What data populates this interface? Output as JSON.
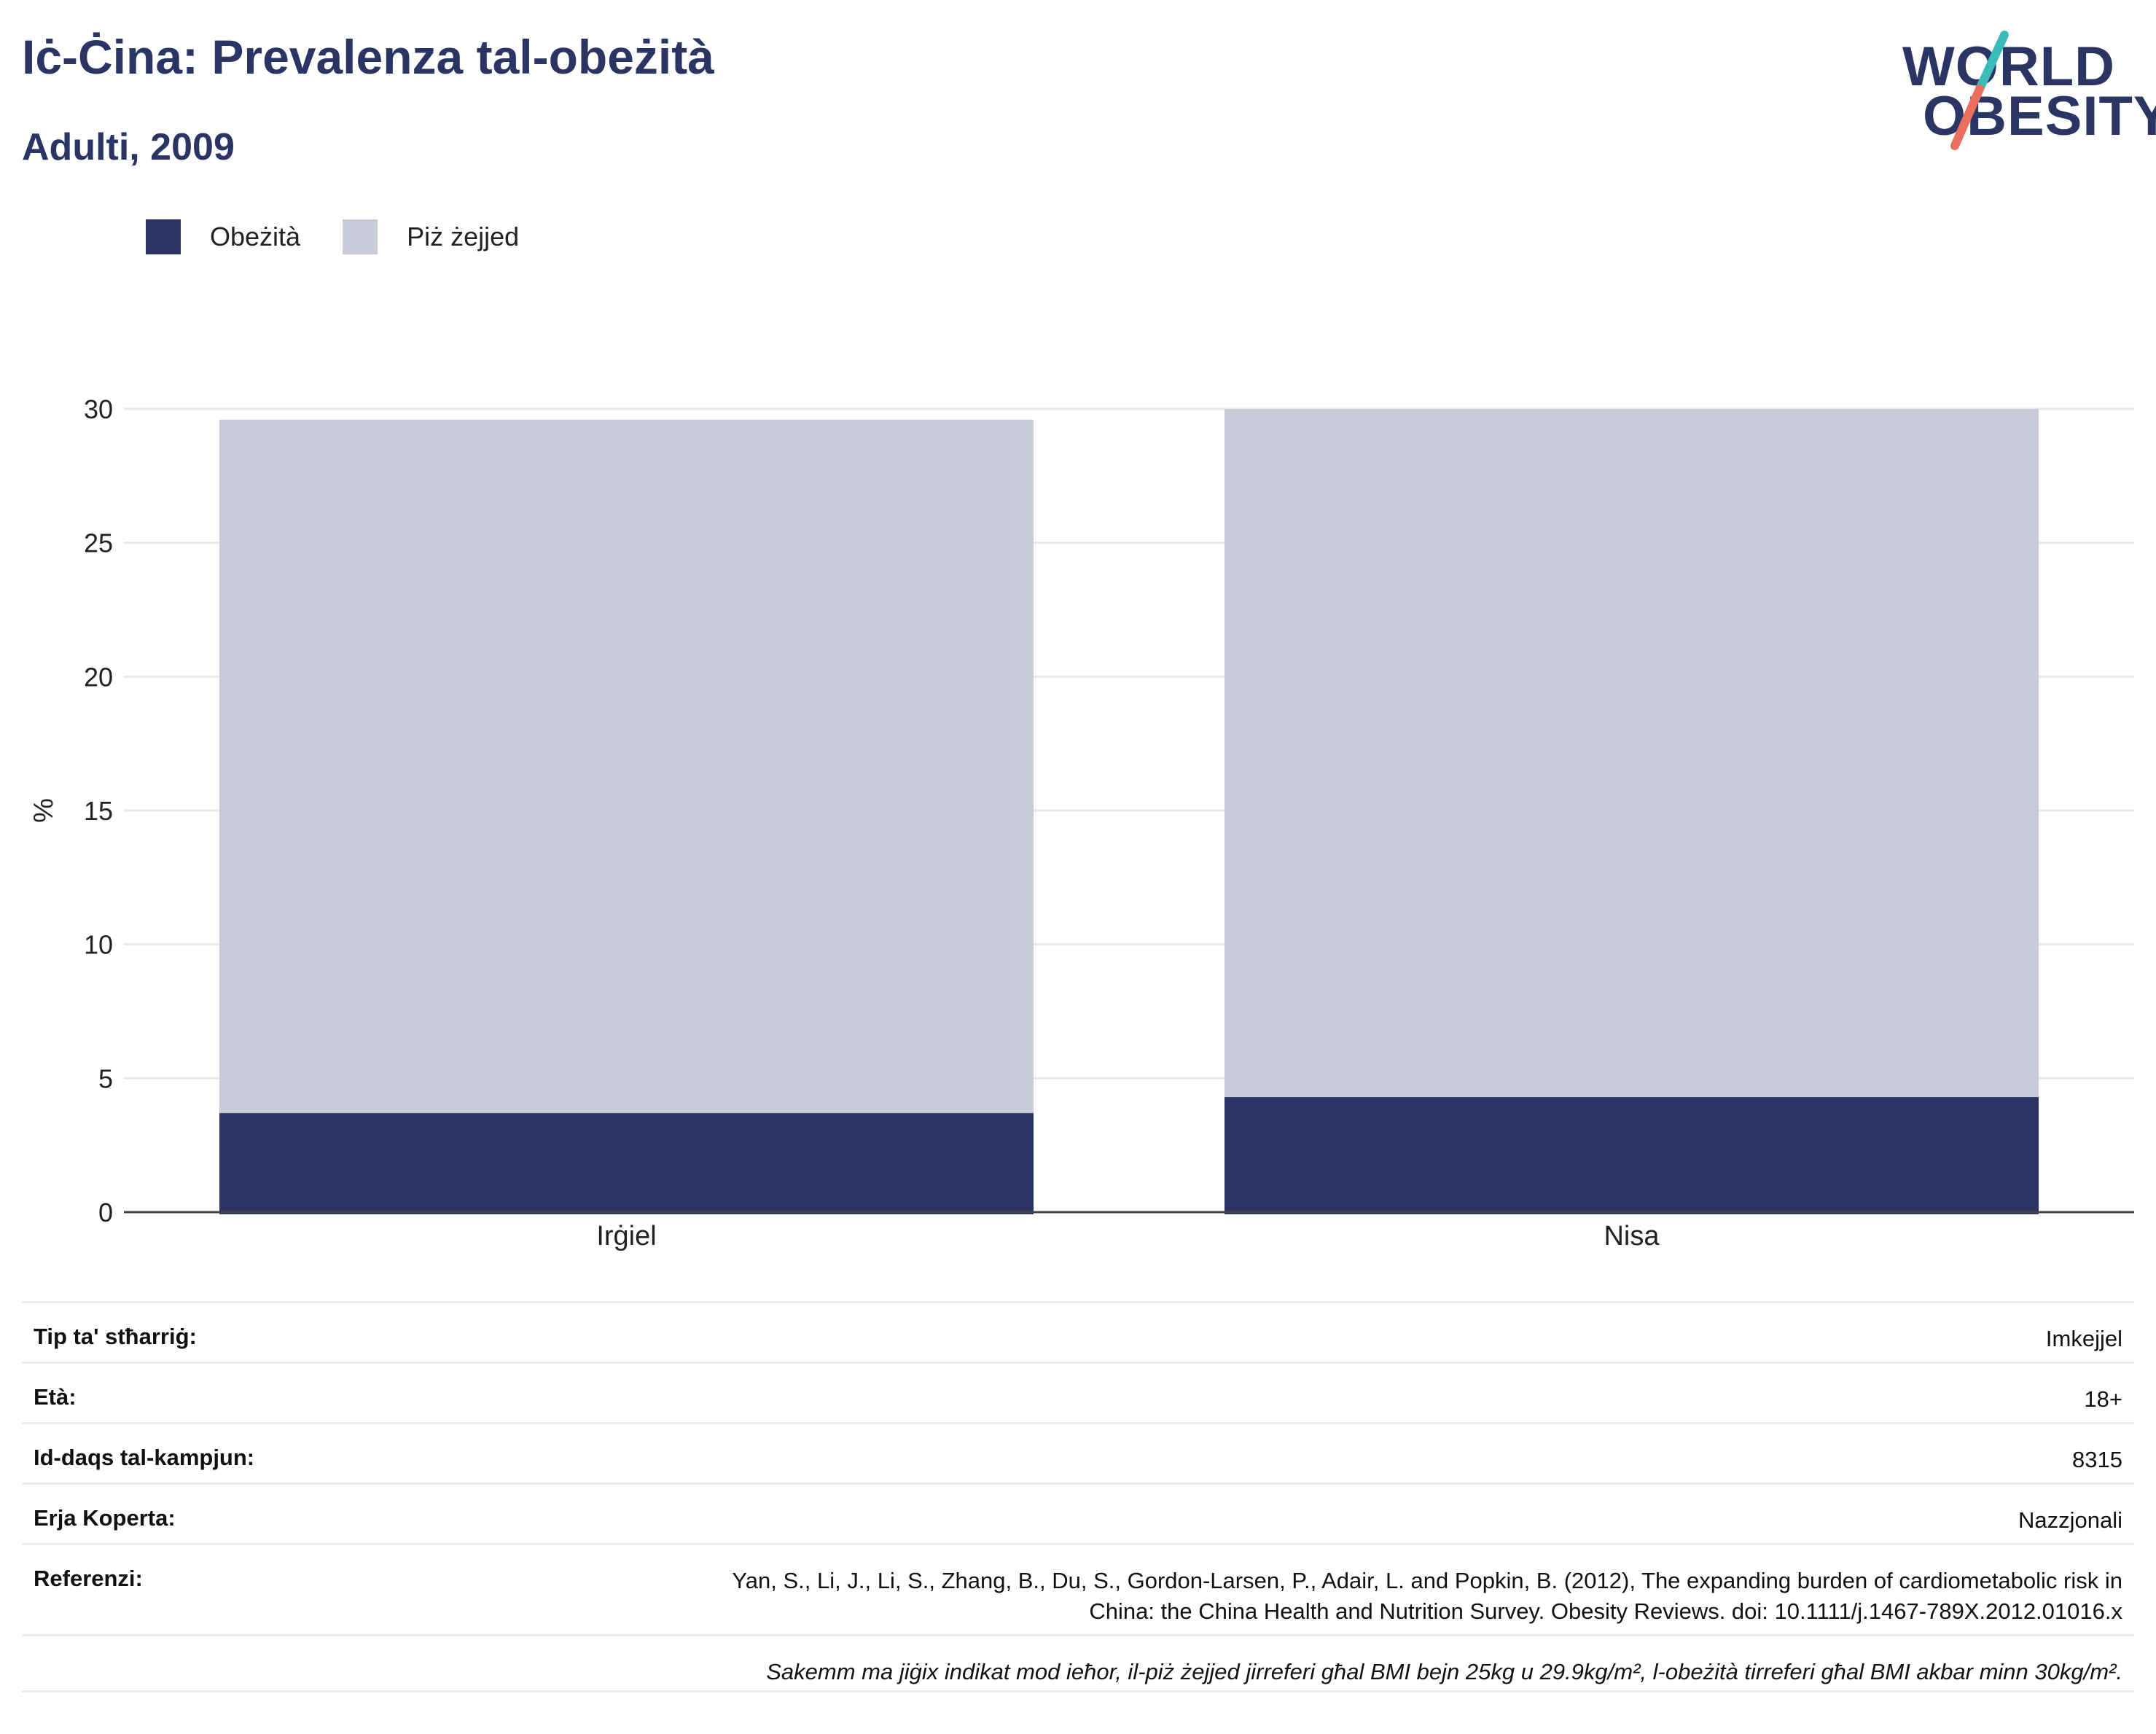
{
  "header": {
    "title": "Iċ-Ċina: Prevalenza tal-obeżità",
    "subtitle": "Adulti, 2009"
  },
  "logo": {
    "line1": "WORLD",
    "line2": "OBESITY",
    "colors": {
      "text": "#2a3563",
      "slash_top": "#3bbcb8",
      "slash_bottom": "#e8705c"
    }
  },
  "legend": [
    {
      "label": "Obeżità",
      "color": "#2a3563"
    },
    {
      "label": "Piż żejjed",
      "color": "#c9ccd8"
    }
  ],
  "chart_data": {
    "type": "bar",
    "stacked": true,
    "categories": [
      "Irġiel",
      "Nisa"
    ],
    "series": [
      {
        "name": "Obeżità",
        "color": "#2a3563",
        "values": [
          3.7,
          4.3
        ]
      },
      {
        "name": "Piż żejjed",
        "color": "#c9ccd8",
        "values": [
          25.9,
          25.7
        ]
      }
    ],
    "ylabel": "%",
    "ylim": [
      0,
      30
    ],
    "yticks": [
      0,
      5,
      10,
      15,
      20,
      25,
      30
    ],
    "grid": true,
    "legend_position": "top-left"
  },
  "info": {
    "rows": [
      {
        "label": "Tip ta' stħarriġ:",
        "value": "Imkejjel"
      },
      {
        "label": "Età:",
        "value": "18+"
      },
      {
        "label": "Id-daqs tal-kampjun:",
        "value": "8315"
      },
      {
        "label": "Erja Koperta:",
        "value": "Nazzjonali"
      },
      {
        "label": "Referenzi:",
        "value_line1": "Yan, S., Li, J., Li, S., Zhang, B., Du, S., Gordon-Larsen, P., Adair, L. and Popkin, B. (2012), The expanding burden of cardiometabolic risk in",
        "value_line2": "China: the China Health and Nutrition Survey. Obesity Reviews. doi: 10.1111/j.1467-789X.2012.01016.x"
      }
    ],
    "note": "Sakemm ma jiġix indikat mod ieħor, il-piż żejjed jirreferi għal BMI bejn 25kg u 29.9kg/m², l-obeżità tirreferi għal BMI akbar minn 30kg/m²."
  }
}
